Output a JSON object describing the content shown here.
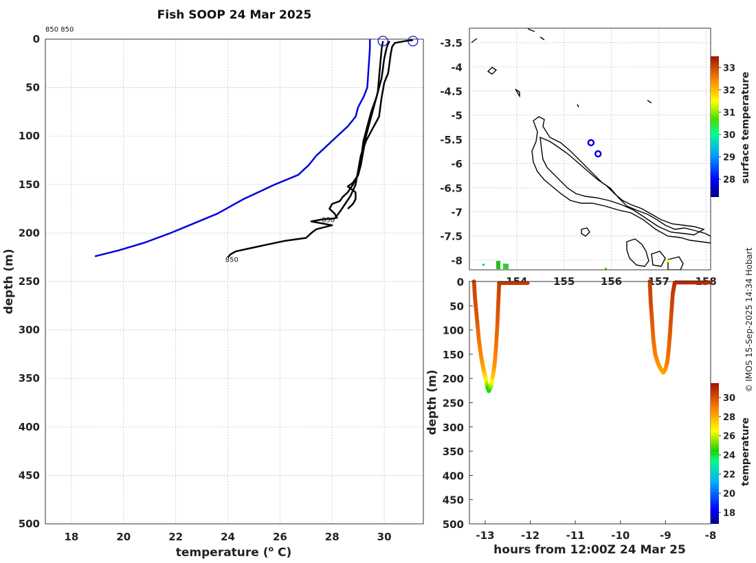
{
  "title": "Fish SOOP 24 Mar 2025",
  "corner_label": "850 850",
  "credit": "© IMOS 15-Sep-2025 14:34 Hobart",
  "chart_data": [
    {
      "type": "line",
      "name": "profile",
      "xlabel": "temperature (",
      "xlabel_sup": "o",
      "xlabel_end": " C)",
      "ylabel": "depth (m)",
      "xlim": [
        17,
        31.5
      ],
      "ylim": [
        0,
        500
      ],
      "y_reversed": true,
      "grid": true,
      "xticks": [
        18,
        20,
        22,
        24,
        26,
        28,
        30
      ],
      "yticks": [
        0,
        50,
        100,
        150,
        200,
        250,
        300,
        350,
        400,
        450,
        500
      ],
      "series": [
        {
          "color": "#0000dd",
          "width": 2.5,
          "points": [
            [
              29.45,
              0
            ],
            [
              29.45,
              10
            ],
            [
              29.4,
              30
            ],
            [
              29.35,
              50
            ],
            [
              29.2,
              60
            ],
            [
              29.0,
              70
            ],
            [
              28.9,
              80
            ],
            [
              28.6,
              90
            ],
            [
              28.2,
              100
            ],
            [
              27.8,
              110
            ],
            [
              27.4,
              120
            ],
            [
              27.1,
              130
            ],
            [
              26.7,
              140
            ],
            [
              25.8,
              150
            ],
            [
              24.6,
              165
            ],
            [
              23.6,
              180
            ],
            [
              22.7,
              190
            ],
            [
              21.8,
              200
            ],
            [
              20.8,
              210
            ],
            [
              19.8,
              218
            ],
            [
              18.9,
              224
            ]
          ]
        },
        {
          "color": "#000000",
          "width": 2.5,
          "points": [
            [
              31.1,
              1
            ],
            [
              30.8,
              2
            ],
            [
              30.4,
              4
            ],
            [
              30.3,
              8
            ],
            [
              30.25,
              15
            ],
            [
              30.2,
              25
            ],
            [
              30.15,
              35
            ],
            [
              30.0,
              45
            ],
            [
              29.9,
              60
            ],
            [
              29.8,
              80
            ],
            [
              29.5,
              95
            ],
            [
              29.3,
              105
            ],
            [
              29.1,
              120
            ],
            [
              29.0,
              135
            ],
            [
              28.9,
              150
            ],
            [
              28.7,
              162
            ],
            [
              28.5,
              170
            ],
            [
              28.3,
              178
            ],
            [
              28.1,
              185
            ],
            [
              27.6,
              186
            ],
            [
              27.2,
              188
            ],
            [
              27.6,
              190
            ],
            [
              28.0,
              192
            ],
            [
              27.4,
              196
            ],
            [
              27.2,
              200
            ],
            [
              27.0,
              205
            ],
            [
              26.2,
              208
            ],
            [
              25.5,
              212
            ],
            [
              24.8,
              216
            ],
            [
              24.3,
              219
            ],
            [
              24.1,
              222
            ],
            [
              24.0,
              225
            ]
          ]
        },
        {
          "color": "#000000",
          "width": 2.5,
          "points": [
            [
              30.2,
              2
            ],
            [
              30.1,
              8
            ],
            [
              30.0,
              20
            ],
            [
              29.9,
              40
            ],
            [
              29.7,
              60
            ],
            [
              29.5,
              75
            ],
            [
              29.4,
              85
            ],
            [
              29.3,
              95
            ],
            [
              29.2,
              105
            ],
            [
              29.15,
              115
            ],
            [
              29.1,
              125
            ],
            [
              29.0,
              140
            ],
            [
              28.8,
              150
            ],
            [
              28.6,
              158
            ],
            [
              28.4,
              163
            ],
            [
              28.3,
              167
            ],
            [
              28.0,
              170
            ],
            [
              27.9,
              175
            ],
            [
              28.1,
              180
            ],
            [
              28.2,
              185
            ]
          ]
        },
        {
          "color": "#000000",
          "width": 2.5,
          "points": [
            [
              29.95,
              2
            ],
            [
              29.9,
              10
            ],
            [
              29.85,
              25
            ],
            [
              29.8,
              40
            ],
            [
              29.75,
              55
            ],
            [
              29.6,
              70
            ],
            [
              29.45,
              85
            ],
            [
              29.3,
              100
            ],
            [
              29.2,
              115
            ],
            [
              29.1,
              130
            ],
            [
              29.0,
              140
            ],
            [
              28.8,
              148
            ],
            [
              28.6,
              152
            ],
            [
              28.9,
              158
            ],
            [
              28.9,
              165
            ],
            [
              28.8,
              170
            ],
            [
              28.6,
              175
            ]
          ]
        }
      ],
      "markers": [
        {
          "x": 29.95,
          "y": 2
        },
        {
          "x": 31.1,
          "y": 2
        }
      ],
      "annotations": [
        {
          "x": 27.6,
          "y": 186,
          "text": "850"
        },
        {
          "x": 23.9,
          "y": 227,
          "text": "850"
        }
      ]
    },
    {
      "type": "map",
      "name": "track map",
      "xlim": [
        153.0,
        158.1
      ],
      "ylim": [
        -8.2,
        -3.2
      ],
      "xticks": [
        154,
        155,
        156,
        157,
        158
      ],
      "yticks": [
        -3.5,
        -4,
        -4.5,
        -5,
        -5.5,
        -6,
        -6.5,
        -7,
        -7.5,
        -8
      ],
      "xtick_labels": [
        "154",
        "155",
        "156",
        "157",
        "158"
      ],
      "ytick_labels": [
        "-3.5",
        "-4",
        "-4.5",
        "-5",
        "-5.5",
        "-6",
        "-6.5",
        "-7",
        "-7.5",
        "-8"
      ],
      "stations": [
        [
          155.57,
          -5.57
        ],
        [
          155.72,
          -5.8
        ]
      ],
      "colorbar": {
        "label": "surface temperature",
        "min": 27.2,
        "max": 33.5,
        "ticks": [
          28,
          29,
          30,
          31,
          32,
          33
        ]
      }
    },
    {
      "type": "scatter",
      "name": "depth-time section",
      "xlabel": "hours from 12:00Z 24 Mar 25",
      "ylabel": "depth (m)",
      "xlim": [
        -13.35,
        -8
      ],
      "ylim": [
        0,
        500
      ],
      "y_reversed": true,
      "xticks": [
        -13,
        -12,
        -11,
        -10,
        -9,
        -8
      ],
      "yticks": [
        0,
        50,
        100,
        150,
        200,
        250,
        300,
        350,
        400,
        450,
        500
      ],
      "casts": [
        {
          "down": [
            [
              -13.25,
              0
            ],
            [
              -13.22,
              40
            ],
            [
              -13.18,
              80
            ],
            [
              -13.14,
              120
            ],
            [
              -13.09,
              155
            ],
            [
              -13.04,
              180
            ],
            [
              -12.99,
              200
            ],
            [
              -12.96,
              215
            ],
            [
              -12.92,
              226
            ]
          ],
          "up": [
            [
              -12.92,
              226
            ],
            [
              -12.87,
              215
            ],
            [
              -12.83,
              195
            ],
            [
              -12.79,
              170
            ],
            [
              -12.76,
              135
            ],
            [
              -12.73,
              90
            ],
            [
              -12.71,
              45
            ],
            [
              -12.69,
              5
            ]
          ],
          "temps_down": [
            30.3,
            30.1,
            29.8,
            29.2,
            28.7,
            28.2,
            27.0,
            25.5,
            24.0
          ],
          "temps_up": [
            24.0,
            25.5,
            27.5,
            28.5,
            29.1,
            29.6,
            30.0,
            30.4
          ]
        },
        {
          "down": [
            [
              -9.35,
              0
            ],
            [
              -9.33,
              40
            ],
            [
              -9.3,
              80
            ],
            [
              -9.27,
              120
            ],
            [
              -9.23,
              150
            ],
            [
              -9.17,
              168
            ],
            [
              -9.11,
              180
            ],
            [
              -9.05,
              188
            ]
          ],
          "up": [
            [
              -9.05,
              188
            ],
            [
              -9.0,
              180
            ],
            [
              -8.96,
              165
            ],
            [
              -8.93,
              140
            ],
            [
              -8.9,
              105
            ],
            [
              -8.87,
              65
            ],
            [
              -8.84,
              25
            ],
            [
              -8.8,
              4
            ]
          ],
          "temps_down": [
            30.4,
            30.2,
            29.8,
            29.4,
            29.0,
            28.6,
            28.3,
            28.0
          ],
          "temps_up": [
            28.0,
            28.4,
            29.0,
            29.4,
            29.8,
            30.1,
            30.4,
            30.7
          ]
        }
      ],
      "surface_segments": [
        {
          "from": -12.69,
          "to": -12.05,
          "depth": 3,
          "temp": 30.5
        },
        {
          "from": -8.78,
          "to": -8.0,
          "depth": 2,
          "temp": 30.8
        }
      ],
      "colorbar": {
        "label": "temperature",
        "min": 16.8,
        "max": 31.5,
        "ticks": [
          18,
          20,
          22,
          24,
          26,
          28,
          30
        ]
      }
    }
  ]
}
